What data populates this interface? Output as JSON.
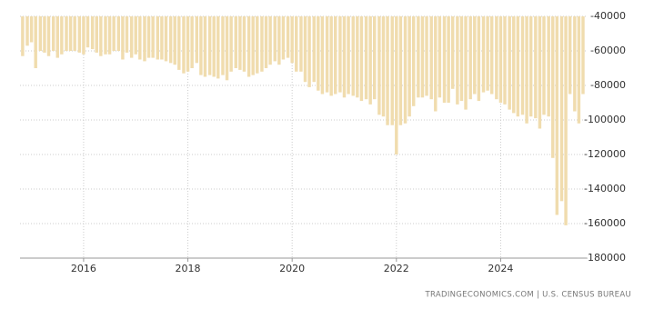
{
  "chart_data": {
    "type": "bar",
    "source": "TRADINGECONOMICS.COM  |  U.S. CENSUS BUREAU",
    "color": "#f0dcae",
    "grid": true,
    "x": [
      2014.83,
      2014.92,
      2015.0,
      2015.08,
      2015.17,
      2015.25,
      2015.33,
      2015.42,
      2015.5,
      2015.58,
      2015.67,
      2015.75,
      2015.83,
      2015.92,
      2016.0,
      2016.08,
      2016.17,
      2016.25,
      2016.33,
      2016.42,
      2016.5,
      2016.58,
      2016.67,
      2016.75,
      2016.83,
      2016.92,
      2017.0,
      2017.08,
      2017.17,
      2017.25,
      2017.33,
      2017.42,
      2017.5,
      2017.58,
      2017.67,
      2017.75,
      2017.83,
      2017.92,
      2018.0,
      2018.08,
      2018.17,
      2018.25,
      2018.33,
      2018.42,
      2018.5,
      2018.58,
      2018.67,
      2018.75,
      2018.83,
      2018.92,
      2019.0,
      2019.08,
      2019.17,
      2019.25,
      2019.33,
      2019.42,
      2019.5,
      2019.58,
      2019.67,
      2019.75,
      2019.83,
      2019.92,
      2020.0,
      2020.08,
      2020.17,
      2020.25,
      2020.33,
      2020.42,
      2020.5,
      2020.58,
      2020.67,
      2020.75,
      2020.83,
      2020.92,
      2021.0,
      2021.08,
      2021.17,
      2021.25,
      2021.33,
      2021.42,
      2021.5,
      2021.58,
      2021.67,
      2021.75,
      2021.83,
      2021.92,
      2022.0,
      2022.08,
      2022.17,
      2022.25,
      2022.33,
      2022.42,
      2022.5,
      2022.58,
      2022.67,
      2022.75,
      2022.83,
      2022.92,
      2023.0,
      2023.08,
      2023.17,
      2023.25,
      2023.33,
      2023.42,
      2023.5,
      2023.58,
      2023.67,
      2023.75,
      2023.83,
      2023.92,
      2024.0,
      2024.08,
      2024.17,
      2024.25,
      2024.33,
      2024.42,
      2024.5,
      2024.58,
      2024.67,
      2024.75,
      2024.83,
      2024.92,
      2025.0,
      2025.08,
      2025.17,
      2025.25,
      2025.33,
      2025.42,
      2025.5,
      2025.58
    ],
    "values": [
      -63000,
      -57000,
      -55000,
      -70000,
      -60000,
      -61000,
      -63000,
      -60000,
      -64000,
      -62000,
      -60000,
      -60000,
      -60000,
      -61000,
      -62000,
      -58000,
      -59000,
      -61000,
      -63000,
      -62000,
      -62000,
      -60000,
      -60000,
      -65000,
      -61000,
      -64000,
      -62000,
      -65000,
      -66000,
      -64000,
      -64000,
      -65000,
      -65000,
      -66000,
      -67000,
      -68000,
      -71000,
      -73000,
      -72000,
      -70000,
      -67000,
      -74000,
      -75000,
      -74000,
      -75000,
      -76000,
      -74000,
      -77000,
      -72000,
      -70000,
      -71000,
      -72000,
      -75000,
      -74000,
      -73000,
      -72000,
      -70000,
      -68000,
      -66000,
      -68000,
      -65000,
      -64000,
      -67000,
      -72000,
      -72000,
      -78000,
      -81000,
      -78000,
      -83000,
      -85000,
      -84000,
      -86000,
      -85000,
      -84000,
      -87000,
      -85000,
      -86000,
      -87000,
      -89000,
      -88000,
      -91000,
      -88000,
      -97000,
      -98000,
      -103000,
      -103000,
      -120000,
      -103000,
      -102000,
      -98000,
      -92000,
      -87000,
      -87000,
      -86000,
      -88000,
      -95000,
      -87000,
      -90000,
      -90000,
      -82000,
      -91000,
      -89000,
      -94000,
      -88000,
      -85000,
      -89000,
      -84000,
      -83000,
      -85000,
      -88000,
      -90000,
      -91000,
      -94000,
      -96000,
      -98000,
      -97000,
      -102000,
      -98000,
      -99000,
      -105000,
      -97000,
      -98000,
      -122000,
      -155000,
      -147000,
      -161000,
      -85000,
      -95000,
      -102000,
      -85000
    ],
    "xlim": [
      2014.78,
      2025.65
    ],
    "xticks": [
      2016,
      2018,
      2020,
      2022,
      2024
    ],
    "ylim": [
      -180000,
      -40000
    ],
    "yticks": [
      -40000,
      -60000,
      -80000,
      -100000,
      -120000,
      -140000,
      -160000,
      -180000
    ]
  }
}
